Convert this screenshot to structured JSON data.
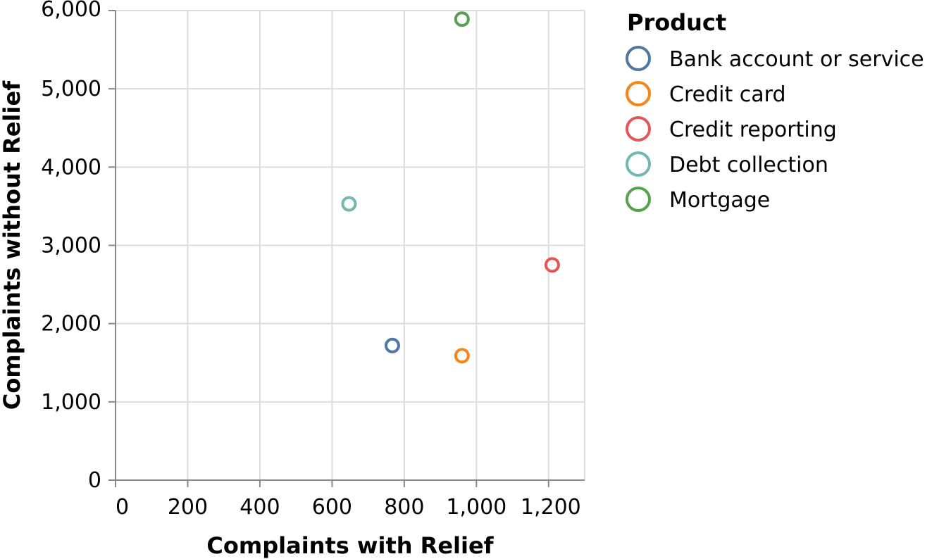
{
  "chart_data": {
    "type": "scatter",
    "xlabel": "Complaints with Relief",
    "ylabel": "Complaints without Relief",
    "xlim": [
      0,
      1300
    ],
    "ylim": [
      0,
      6000
    ],
    "x_ticks": [
      0,
      200,
      400,
      600,
      800,
      1000,
      1200
    ],
    "x_tick_labels": [
      "0",
      "200",
      "400",
      "600",
      "800",
      "1,000",
      "1,200"
    ],
    "y_ticks": [
      0,
      1000,
      2000,
      3000,
      4000,
      5000,
      6000
    ],
    "y_tick_labels": [
      "0",
      "1,000",
      "2,000",
      "3,000",
      "4,000",
      "5,000",
      "6,000"
    ],
    "grid": true,
    "legend": {
      "title": "Product",
      "placement": "right"
    },
    "series": [
      {
        "name": "Bank account or service",
        "color": "#4c78a8",
        "x": 767,
        "y": 1720
      },
      {
        "name": "Credit card",
        "color": "#f58518",
        "x": 960,
        "y": 1590
      },
      {
        "name": "Credit reporting",
        "color": "#e45756",
        "x": 1210,
        "y": 2750
      },
      {
        "name": "Debt collection",
        "color": "#72b7b2",
        "x": 647,
        "y": 3530
      },
      {
        "name": "Mortgage",
        "color": "#54a24b",
        "x": 960,
        "y": 5890
      }
    ]
  }
}
